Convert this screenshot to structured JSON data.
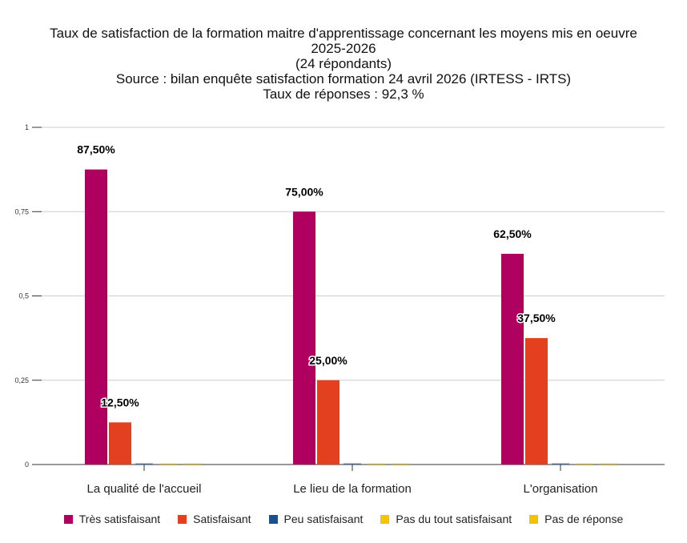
{
  "chart_data": {
    "type": "bar",
    "title_lines": [
      "Taux de satisfaction de la formation maitre d'apprentissage concernant les moyens mis en oeuvre",
      "2025-2026",
      "(24 répondants)",
      "Source : bilan enquête satisfaction formation 24 avril 2026 (IRTESS - IRTS)",
      "Taux de réponses : 92,3 %"
    ],
    "categories": [
      "La qualité de l'accueil",
      "Le lieu de la formation",
      "L'organisation"
    ],
    "series": [
      {
        "name": "Très satisfaisant",
        "color": "#b0005f",
        "values": [
          0.875,
          0.75,
          0.625
        ],
        "labels": [
          "87,50%",
          "75,00%",
          "62,50%"
        ]
      },
      {
        "name": "Satisfaisant",
        "color": "#e2401f",
        "values": [
          0.125,
          0.25,
          0.375
        ],
        "labels": [
          "12,50%",
          "25,00%",
          "37,50%"
        ]
      },
      {
        "name": "Peu satisfaisant",
        "color": "#1f4e8c",
        "values": [
          0,
          0,
          0
        ],
        "labels": [
          "",
          "",
          ""
        ]
      },
      {
        "name": "Pas du tout satisfaisant",
        "color": "#f5c400",
        "values": [
          0,
          0,
          0
        ],
        "labels": [
          "",
          "",
          ""
        ]
      },
      {
        "name": "Pas de réponse",
        "color": "#f2c200",
        "values": [
          0,
          0,
          0
        ],
        "labels": [
          "",
          "",
          ""
        ]
      }
    ],
    "ylim": [
      0,
      1
    ],
    "yticks": [
      0,
      0.25,
      0.5,
      0.75,
      1
    ],
    "ytick_labels": [
      "0",
      "0,25",
      "0,5",
      "0,75",
      "1"
    ],
    "grid": true,
    "legend_position": "bottom"
  }
}
